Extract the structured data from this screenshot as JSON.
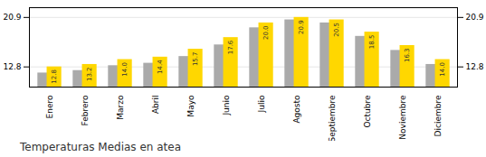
{
  "chart_data": {
    "type": "bar",
    "title": "Temperaturas Medias en atea",
    "categories": [
      "Enero",
      "Febrero",
      "Marzo",
      "Abril",
      "Mayo",
      "Junio",
      "Julio",
      "Agosto",
      "Septiembre",
      "Octubre",
      "Noviembre",
      "Diciembre"
    ],
    "series": [
      {
        "color": "#AAAAAA",
        "values": [
          11.8,
          12.2,
          13.0,
          13.4,
          14.5,
          16.4,
          19.2,
          20.5,
          20.0,
          17.8,
          15.5,
          13.2
        ]
      },
      {
        "color": "#FFD700",
        "values": [
          12.8,
          13.2,
          14.0,
          14.4,
          15.7,
          17.6,
          20.0,
          20.9,
          20.5,
          18.5,
          16.3,
          14.0
        ],
        "data_labels": true,
        "value_labels": [
          "12.8",
          "13.2",
          "14.0",
          "14.4",
          "15.7",
          "17.6",
          "20.0",
          "20.9",
          "20.5",
          "18.5",
          "16.3",
          "14.0"
        ]
      }
    ],
    "ylim": [
      9.5,
      22.5
    ],
    "yticks": [
      12.8,
      20.9
    ],
    "grid": true
  }
}
